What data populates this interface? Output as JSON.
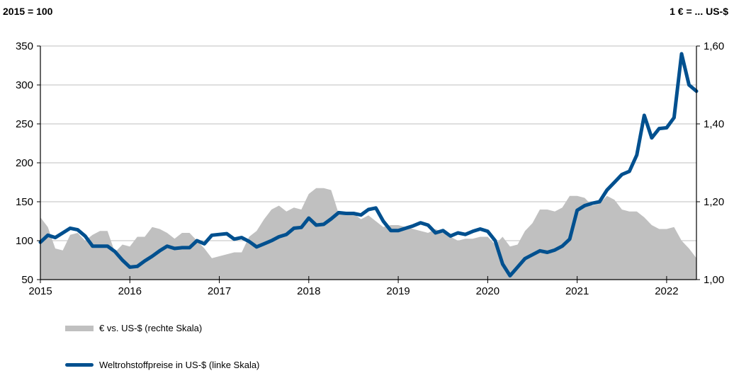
{
  "chart_data": {
    "type": "line",
    "title": "",
    "left_axis_label": "2015 = 100",
    "right_axis_label": "1 € = ... US-$",
    "xlabel": "",
    "x_ticks": [
      "2015",
      "2016",
      "2017",
      "2018",
      "2019",
      "2020",
      "2021",
      "2022"
    ],
    "x_start": "2015-01",
    "x_end": "2022-05",
    "frequency": "monthly",
    "left_ylim": [
      50,
      350
    ],
    "left_yticks": [
      "50",
      "100",
      "150",
      "200",
      "250",
      "300",
      "350"
    ],
    "right_ylim": [
      1.0,
      1.6
    ],
    "right_yticks": [
      "1,00",
      "1,20",
      "1,40",
      "1,60"
    ],
    "grid": "horizontal",
    "legend_position": "bottom-left",
    "series": [
      {
        "name": "€ vs. US-$ (rechte Skala)",
        "type": "area",
        "axis": "right",
        "color": "#c0c0c0",
        "values": [
          1.16,
          1.135,
          1.08,
          1.075,
          1.115,
          1.12,
          1.1,
          1.115,
          1.125,
          1.125,
          1.07,
          1.09,
          1.085,
          1.11,
          1.11,
          1.135,
          1.13,
          1.12,
          1.105,
          1.12,
          1.12,
          1.1,
          1.08,
          1.055,
          1.06,
          1.065,
          1.07,
          1.07,
          1.11,
          1.125,
          1.155,
          1.18,
          1.19,
          1.175,
          1.185,
          1.18,
          1.22,
          1.235,
          1.235,
          1.23,
          1.17,
          1.165,
          1.17,
          1.155,
          1.165,
          1.15,
          1.135,
          1.14,
          1.14,
          1.135,
          1.13,
          1.125,
          1.12,
          1.13,
          1.12,
          1.11,
          1.1,
          1.105,
          1.105,
          1.11,
          1.11,
          1.09,
          1.11,
          1.085,
          1.09,
          1.125,
          1.145,
          1.18,
          1.18,
          1.175,
          1.185,
          1.215,
          1.215,
          1.21,
          1.19,
          1.195,
          1.215,
          1.205,
          1.18,
          1.175,
          1.175,
          1.16,
          1.14,
          1.13,
          1.13,
          1.135,
          1.1,
          1.08,
          1.055
        ]
      },
      {
        "name": "Weltrohstoffpreise in US-$ (linke Skala)",
        "type": "line",
        "axis": "left",
        "color": "#00508f",
        "values": [
          98,
          107,
          104,
          110,
          116,
          114,
          106,
          93,
          93,
          93,
          86,
          75,
          66,
          67,
          74,
          80,
          87,
          93,
          90,
          91,
          91,
          100,
          96,
          107,
          108,
          109,
          102,
          104,
          99,
          92,
          96,
          100,
          105,
          108,
          116,
          117,
          129,
          120,
          121,
          128,
          136,
          135,
          135,
          133,
          140,
          142,
          125,
          113,
          113,
          116,
          119,
          123,
          120,
          110,
          113,
          106,
          110,
          108,
          112,
          115,
          112,
          100,
          70,
          55,
          66,
          77,
          82,
          87,
          85,
          88,
          93,
          102,
          139,
          145,
          148,
          150,
          165,
          175,
          185,
          189,
          210,
          261,
          232,
          244,
          245,
          258,
          340,
          300,
          292
        ]
      }
    ]
  },
  "legend": {
    "fx_label": "€ vs. US-$ (rechte Skala)",
    "commodity_label": "Weltrohstoffpreise in US-$ (linke Skala)"
  }
}
